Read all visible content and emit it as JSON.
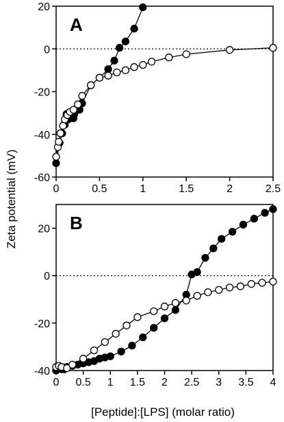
{
  "figure": {
    "ylabel": "Zeta potential (mV)",
    "xlabel": "[Peptide]:[LPS] (molar ratio)"
  },
  "chart_data": [
    {
      "type": "scatter",
      "panel": "A",
      "xlim": [
        0,
        2.5
      ],
      "ylim": [
        -60,
        20
      ],
      "xticks": [
        0,
        0.5,
        1,
        1.5,
        2,
        2.5
      ],
      "xtick_labels": [
        "0",
        "0.5",
        "1",
        "1.5",
        "2",
        "2.5"
      ],
      "yticks": [
        -60,
        -40,
        -20,
        0,
        20
      ],
      "ytick_labels": [
        "-60",
        "-40",
        "-20",
        "0",
        "20"
      ],
      "zero_reference_line": "dotted",
      "grid": false,
      "series": [
        {
          "marker": "filled-circle",
          "color": "#000000",
          "x": [
            0.0,
            0.04,
            0.07,
            0.1,
            0.12,
            0.14,
            0.17,
            0.18,
            0.2,
            0.21,
            0.27,
            0.3,
            0.4,
            0.5,
            0.6,
            0.67,
            0.73,
            0.8,
            0.9,
            1.0
          ],
          "y": [
            -53.5,
            -44,
            -39.5,
            -35.5,
            -30.5,
            -33,
            -30,
            -31.5,
            -32.5,
            -30.5,
            -28.5,
            -25.5,
            -17,
            -13.5,
            -9.5,
            -5.5,
            0.5,
            3.5,
            9.5,
            19.5
          ]
        },
        {
          "marker": "open-circle",
          "color": "#000000",
          "x": [
            0.0,
            0.02,
            0.03,
            0.05,
            0.08,
            0.1,
            0.13,
            0.16,
            0.2,
            0.25,
            0.3,
            0.4,
            0.5,
            0.6,
            0.7,
            0.8,
            0.9,
            1.0,
            1.1,
            1.3,
            1.5,
            2.0,
            2.5
          ],
          "y": [
            -50.5,
            -46,
            -43.5,
            -39.5,
            -36,
            -33,
            -31,
            -29.5,
            -28.5,
            -26,
            -22,
            -17,
            -13.5,
            -12.5,
            -11,
            -10,
            -8.5,
            -7.5,
            -6,
            -4,
            -2.5,
            -0.5,
            0.5
          ]
        }
      ]
    },
    {
      "type": "scatter",
      "panel": "B",
      "xlim": [
        0,
        4
      ],
      "ylim": [
        -40,
        30
      ],
      "xticks": [
        0,
        0.5,
        1,
        1.5,
        2,
        2.5,
        3,
        3.5,
        4
      ],
      "xtick_labels": [
        "0",
        "0.5",
        "1",
        "1.5",
        "2",
        "2.5",
        "3",
        "3.5",
        "4"
      ],
      "yticks": [
        -40,
        -20,
        0,
        20
      ],
      "ytick_labels": [
        "-40",
        "-20",
        "0",
        "20"
      ],
      "zero_reference_line": "dotted",
      "grid": false,
      "series": [
        {
          "marker": "filled-circle",
          "color": "#000000",
          "x": [
            0.0,
            0.1,
            0.15,
            0.2,
            0.3,
            0.4,
            0.5,
            0.6,
            0.7,
            0.8,
            0.9,
            1.0,
            1.2,
            1.4,
            1.6,
            1.8,
            2.0,
            2.2,
            2.4,
            2.5,
            2.6,
            2.75,
            2.9,
            3.05,
            3.25,
            3.45,
            3.65,
            3.85,
            4.0
          ],
          "y": [
            -40,
            -39.5,
            -39.5,
            -38.5,
            -38,
            -37.5,
            -37,
            -36.5,
            -36,
            -35,
            -34.5,
            -34,
            -32,
            -29.5,
            -26,
            -22,
            -18,
            -14.5,
            -8,
            0.5,
            1.5,
            7.5,
            11.5,
            15.5,
            18.5,
            21.5,
            24,
            26.5,
            28
          ]
        },
        {
          "marker": "open-circle",
          "color": "#000000",
          "x": [
            0.0,
            0.05,
            0.1,
            0.2,
            0.3,
            0.5,
            0.7,
            0.9,
            1.1,
            1.3,
            1.5,
            1.8,
            2.0,
            2.2,
            2.4,
            2.6,
            2.8,
            3.0,
            3.2,
            3.4,
            3.6,
            3.8,
            4.0
          ],
          "y": [
            -38.5,
            -38,
            -38.5,
            -39,
            -37.5,
            -35,
            -31.5,
            -28,
            -24.5,
            -21,
            -17.5,
            -15,
            -13,
            -11.5,
            -10.5,
            -8.5,
            -7,
            -6,
            -5,
            -4.5,
            -3.5,
            -3,
            -2.5
          ]
        }
      ]
    }
  ]
}
